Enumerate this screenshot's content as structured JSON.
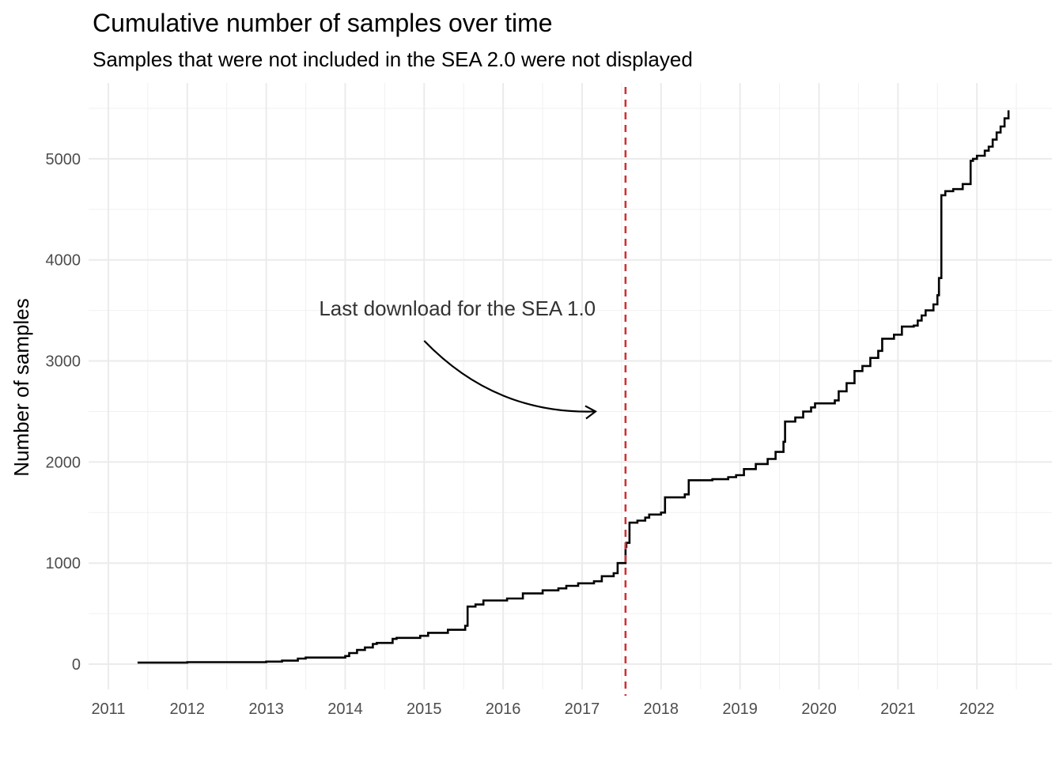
{
  "chart_data": {
    "type": "line",
    "title": "Cumulative number of samples over time",
    "subtitle": "Samples that were not included in the SEA 2.0 were not displayed",
    "xlabel": "",
    "ylabel": "Number of samples",
    "x_ticks": [
      "2011",
      "2012",
      "2013",
      "2014",
      "2015",
      "2016",
      "2017",
      "2018",
      "2019",
      "2020",
      "2021",
      "2022"
    ],
    "y_ticks": [
      0,
      1000,
      2000,
      3000,
      4000,
      5000
    ],
    "xlim": [
      2010.75,
      2022.95
    ],
    "ylim": [
      -250,
      5750
    ],
    "grid": true,
    "series": [
      {
        "step": true,
        "x": [
          2011.37,
          2012.0,
          2013.0,
          2013.2,
          2013.4,
          2013.5,
          2014.0,
          2014.05,
          2014.15,
          2014.25,
          2014.35,
          2014.4,
          2014.6,
          2014.65,
          2014.95,
          2015.05,
          2015.3,
          2015.52,
          2015.55,
          2015.65,
          2015.75,
          2016.05,
          2016.25,
          2016.5,
          2016.7,
          2016.8,
          2016.95,
          2017.15,
          2017.25,
          2017.4,
          2017.45,
          2017.55,
          2017.56,
          2017.6,
          2017.7,
          2017.8,
          2017.85,
          2018.0,
          2018.05,
          2018.3,
          2018.35,
          2018.65,
          2018.85,
          2018.95,
          2019.05,
          2019.2,
          2019.35,
          2019.45,
          2019.55,
          2019.57,
          2019.7,
          2019.8,
          2019.9,
          2019.95,
          2020.2,
          2020.25,
          2020.35,
          2020.45,
          2020.55,
          2020.65,
          2020.75,
          2020.8,
          2020.95,
          2021.05,
          2021.2,
          2021.25,
          2021.3,
          2021.35,
          2021.45,
          2021.5,
          2021.52,
          2021.55,
          2021.6,
          2021.7,
          2021.82,
          2021.92,
          2021.95,
          2022.0,
          2022.1,
          2022.15,
          2022.2,
          2022.25,
          2022.3,
          2022.35,
          2022.4
        ],
        "y": [
          15,
          20,
          25,
          35,
          55,
          65,
          80,
          110,
          140,
          165,
          200,
          210,
          250,
          260,
          280,
          310,
          340,
          380,
          570,
          590,
          630,
          650,
          700,
          730,
          750,
          775,
          800,
          820,
          870,
          900,
          1000,
          1160,
          1200,
          1400,
          1420,
          1450,
          1480,
          1500,
          1650,
          1680,
          1820,
          1830,
          1850,
          1870,
          1930,
          1980,
          2030,
          2100,
          2200,
          2400,
          2440,
          2500,
          2540,
          2580,
          2610,
          2700,
          2780,
          2900,
          2950,
          3030,
          3100,
          3220,
          3260,
          3340,
          3350,
          3400,
          3450,
          3500,
          3560,
          3650,
          3820,
          4640,
          4680,
          4700,
          4750,
          4980,
          5000,
          5030,
          5080,
          5120,
          5190,
          5260,
          5320,
          5400,
          5480
        ]
      }
    ],
    "vline": {
      "x": 2017.55,
      "color": "#cc3333",
      "style": "dashed"
    },
    "annotation": {
      "text": "Last download for the SEA 1.0",
      "point_at_x": 2017.17,
      "point_at_y": 2500
    }
  }
}
